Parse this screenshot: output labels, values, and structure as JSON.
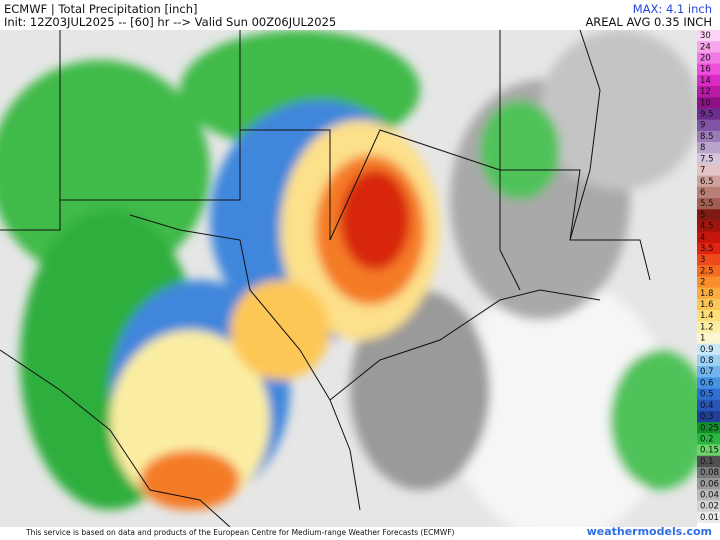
{
  "header": {
    "title": "ECMWF | Total Precipitation [inch]",
    "subtitle": "Init: 12Z03JUL2025 -- [60] hr --> Valid Sun 00Z06JUL2025",
    "max": "MAX: 4.1 inch",
    "areal_avg": "AREAL AVG 0.35 INCH"
  },
  "colorbar": [
    {
      "label": "30",
      "color": "#fbd3f5"
    },
    {
      "label": "24",
      "color": "#f7a6ee"
    },
    {
      "label": "20",
      "color": "#f27ae4"
    },
    {
      "label": "16",
      "color": "#ec4fd9"
    },
    {
      "label": "14",
      "color": "#dc2ac6"
    },
    {
      "label": "12",
      "color": "#b81aa5"
    },
    {
      "label": "10",
      "color": "#8e1285"
    },
    {
      "label": "9.5",
      "color": "#6d2f8e"
    },
    {
      "label": "9",
      "color": "#8154a3"
    },
    {
      "label": "8.5",
      "color": "#9c7cb8"
    },
    {
      "label": "8",
      "color": "#b9a4cc"
    },
    {
      "label": "7.5",
      "color": "#d5c5dd"
    },
    {
      "label": "7",
      "color": "#e3c3c3"
    },
    {
      "label": "6.5",
      "color": "#cfa19c"
    },
    {
      "label": "6",
      "color": "#b97f76"
    },
    {
      "label": "5.5",
      "color": "#a35e53"
    },
    {
      "label": "5",
      "color": "#7f1a12"
    },
    {
      "label": "4.5",
      "color": "#a3140c"
    },
    {
      "label": "4",
      "color": "#c6160b"
    },
    {
      "label": "3.5",
      "color": "#e0240f"
    },
    {
      "label": "3",
      "color": "#ee4a1a"
    },
    {
      "label": "2.5",
      "color": "#f56c21"
    },
    {
      "label": "2",
      "color": "#f98f2d"
    },
    {
      "label": "1.8",
      "color": "#fbac3d"
    },
    {
      "label": "1.6",
      "color": "#fdc756"
    },
    {
      "label": "1.4",
      "color": "#fede78"
    },
    {
      "label": "1.2",
      "color": "#fbeea3"
    },
    {
      "label": "1",
      "color": "#fbf6cf"
    },
    {
      "label": "0.9",
      "color": "#c9e8f8"
    },
    {
      "label": "0.8",
      "color": "#9dd1f3"
    },
    {
      "label": "0.7",
      "color": "#6fb4ec"
    },
    {
      "label": "0.6",
      "color": "#4593e3"
    },
    {
      "label": "0.5",
      "color": "#2f6fd3"
    },
    {
      "label": "0.4",
      "color": "#2855b8"
    },
    {
      "label": "0.3",
      "color": "#1f3f9a"
    },
    {
      "label": "0.25",
      "color": "#138f2a"
    },
    {
      "label": "0.2",
      "color": "#2bb642"
    },
    {
      "label": "0.15",
      "color": "#6dd36a"
    },
    {
      "label": "0.1",
      "color": "#505050"
    },
    {
      "label": "0.08",
      "color": "#7a7a7a"
    },
    {
      "label": "0.06",
      "color": "#9a9a9a"
    },
    {
      "label": "0.04",
      "color": "#b9b9b9"
    },
    {
      "label": "0.02",
      "color": "#d3d3d3"
    },
    {
      "label": "0.01",
      "color": "#ececec"
    }
  ],
  "footer": {
    "credit": "This service is based on data and products of the European Centre for Medium-range Weather Forecasts (ECMWF)",
    "brand": "weathermodels.com"
  }
}
